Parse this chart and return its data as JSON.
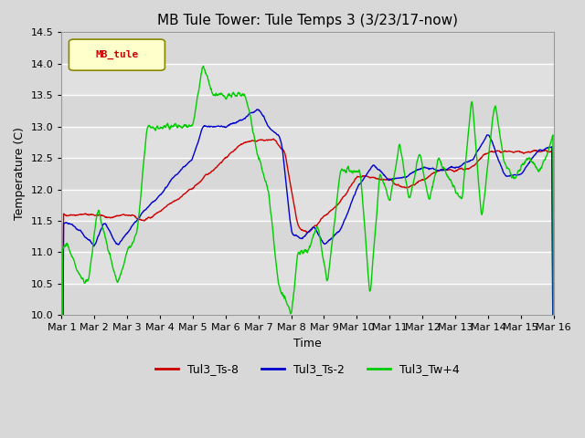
{
  "title": "MB Tule Tower: Tule Temps 3 (3/23/17-now)",
  "xlabel": "Time",
  "ylabel": "Temperature (C)",
  "ylim": [
    10.0,
    14.5
  ],
  "yticks": [
    10.0,
    10.5,
    11.0,
    11.5,
    12.0,
    12.5,
    13.0,
    13.5,
    14.0,
    14.5
  ],
  "xtick_labels": [
    "Mar 1",
    "Mar 2",
    "Mar 3",
    "Mar 4",
    "Mar 5",
    "Mar 6",
    "Mar 7",
    "Mar 8",
    "Mar 9",
    "Mar 10",
    "Mar 11",
    "Mar 12",
    "Mar 13",
    "Mar 14",
    "Mar 15",
    "Mar 16"
  ],
  "bg_color": "#d8d8d8",
  "plot_bg_color": "#d8d8d8",
  "band_color_dark": "#cccccc",
  "band_color_light": "#e0e0e0",
  "grid_color": "#bbbbbb",
  "line_colors": {
    "red": "#cc0000",
    "blue": "#0000cc",
    "green": "#00cc00"
  },
  "legend_label": "MB_tule",
  "legend_bg": "#ffffcc",
  "legend_edge": "#888800",
  "series_labels": [
    "Tul3_Ts-8",
    "Tul3_Ts-2",
    "Tul3_Tw+4"
  ],
  "title_fontsize": 11,
  "axis_fontsize": 9,
  "tick_fontsize": 8
}
